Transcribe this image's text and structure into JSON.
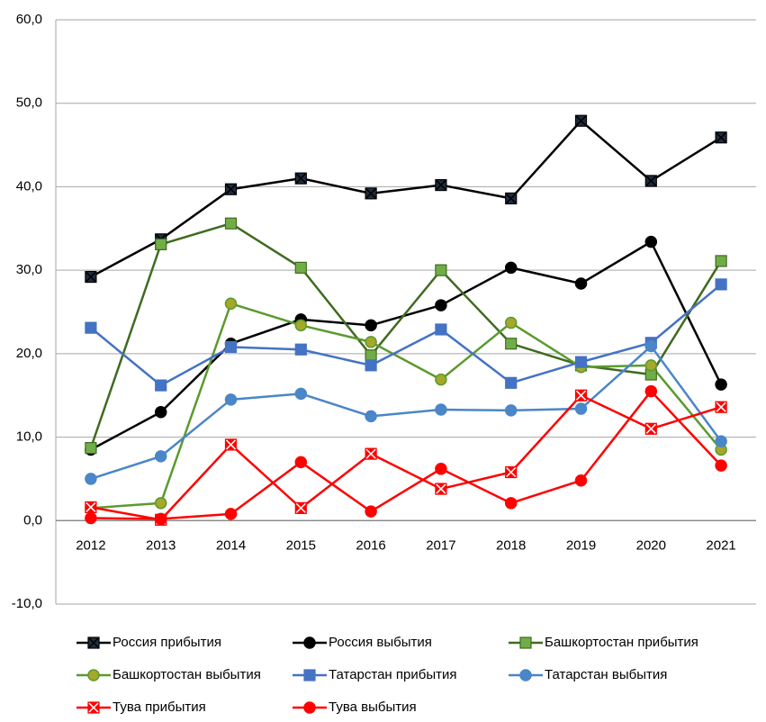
{
  "chart_data": {
    "type": "line",
    "categories": [
      "2012",
      "2013",
      "2014",
      "2015",
      "2016",
      "2017",
      "2018",
      "2019",
      "2020",
      "2021"
    ],
    "ylim": [
      -10,
      60
    ],
    "yticks": [
      {
        "value": -10,
        "label": "-10,0"
      },
      {
        "value": 0,
        "label": "0,0"
      },
      {
        "value": 10,
        "label": "10,0"
      },
      {
        "value": 20,
        "label": "20,0"
      },
      {
        "value": 30,
        "label": "30,0"
      },
      {
        "value": 40,
        "label": "40,0"
      },
      {
        "value": 50,
        "label": "50,0"
      },
      {
        "value": 60,
        "label": "60,0"
      }
    ],
    "grid": true,
    "legend": "bottom",
    "series": [
      {
        "name": "Россия прибытия",
        "color": "#000000",
        "marker": "x-square",
        "marker_color": "#1f2d3d",
        "values": [
          29.2,
          33.7,
          39.7,
          41.0,
          39.2,
          40.2,
          38.6,
          47.9,
          40.7,
          45.9
        ]
      },
      {
        "name": "Россия выбытия",
        "color": "#000000",
        "marker": "circle",
        "marker_color": "#000000",
        "values": [
          8.5,
          13.0,
          21.2,
          24.1,
          23.4,
          25.8,
          30.3,
          28.4,
          33.4,
          16.3
        ]
      },
      {
        "name": "Башкортостан прибытия",
        "color": "#3f6b1f",
        "marker": "square",
        "marker_color": "#70ad47",
        "values": [
          8.7,
          33.1,
          35.6,
          30.3,
          19.8,
          30.0,
          21.2,
          18.6,
          17.5,
          31.1
        ]
      },
      {
        "name": "Башкортостан выбытия",
        "color": "#5b9a2e",
        "marker": "circle",
        "marker_color": "#a5a82a",
        "values": [
          1.5,
          2.1,
          26.0,
          23.4,
          21.4,
          16.9,
          23.7,
          18.4,
          18.6,
          8.5
        ]
      },
      {
        "name": "Татарстан прибытия",
        "color": "#4472c4",
        "marker": "square",
        "marker_color": "#4472c4",
        "values": [
          23.1,
          16.2,
          20.8,
          20.5,
          18.6,
          22.9,
          16.5,
          19.0,
          21.3,
          28.3
        ]
      },
      {
        "name": "Татарстан выбытия",
        "color": "#4a86c8",
        "marker": "circle",
        "marker_color": "#4a86c8",
        "values": [
          5.0,
          7.7,
          14.5,
          15.2,
          12.5,
          13.3,
          13.2,
          13.4,
          20.9,
          9.5
        ]
      },
      {
        "name": "Тува прибытия",
        "color": "#ff0000",
        "marker": "x-square",
        "marker_color": "#ff0000",
        "values": [
          1.6,
          0.1,
          9.1,
          1.5,
          8.0,
          3.8,
          5.8,
          15.0,
          11.0,
          13.6
        ]
      },
      {
        "name": "Тува выбытия",
        "color": "#ff0000",
        "marker": "circle",
        "marker_color": "#ff0000",
        "values": [
          0.3,
          0.2,
          0.8,
          7.0,
          1.1,
          6.2,
          2.1,
          4.8,
          15.5,
          6.6
        ]
      }
    ]
  }
}
